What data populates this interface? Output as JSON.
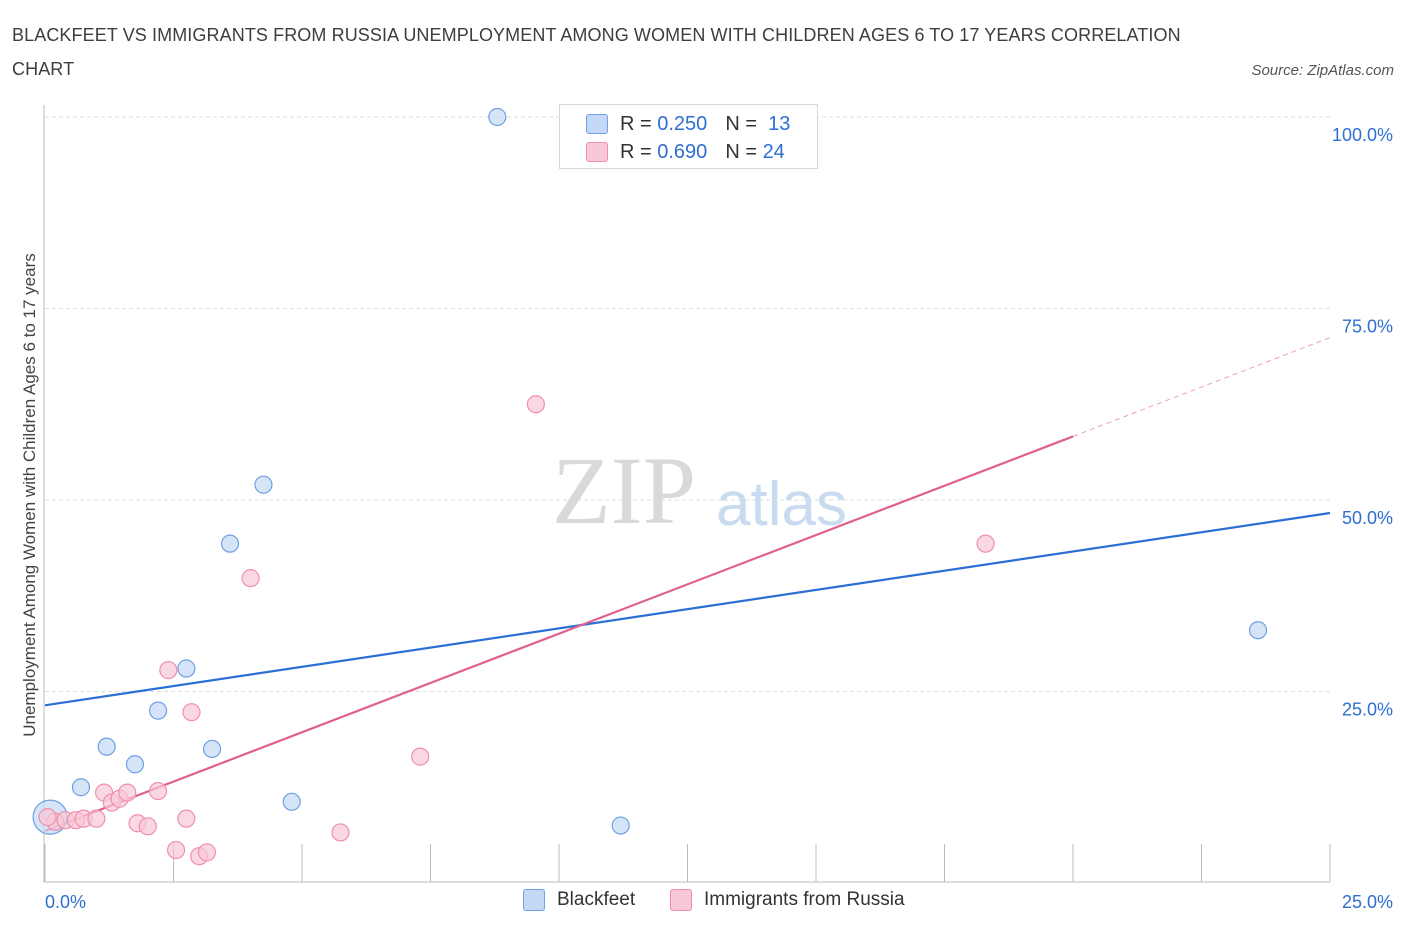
{
  "title": "BLACKFEET VS IMMIGRANTS FROM RUSSIA UNEMPLOYMENT AMONG WOMEN WITH CHILDREN AGES 6 TO 17 YEARS CORRELATION CHART",
  "source": "Source: ZipAtlas.com",
  "watermark": {
    "zip": "ZIP",
    "atlas": "atlas"
  },
  "legend": {
    "r_label": "R =",
    "n_label": "N =",
    "rows": [
      {
        "r": "0.250",
        "n": "13"
      },
      {
        "r": "0.690",
        "n": "24"
      }
    ]
  },
  "bottom_legend": [
    "Blackfeet",
    "Immigrants from Russia"
  ],
  "chart_data": {
    "type": "scatter",
    "title": "BLACKFEET VS IMMIGRANTS FROM RUSSIA UNEMPLOYMENT AMONG WOMEN WITH CHILDREN AGES 6 TO 17 YEARS CORRELATION CHART",
    "xlabel": "",
    "ylabel": "Unemployment Among Women with Children Ages 6 to 17 years",
    "xlim": [
      0,
      25
    ],
    "ylim": [
      0,
      100
    ],
    "x_tick_labels": [
      "0.0%",
      "25.0%"
    ],
    "y_tick_labels": [
      "25.0%",
      "50.0%",
      "75.0%",
      "100.0%"
    ],
    "y_ticks": [
      25,
      50,
      75,
      100
    ],
    "grid": true,
    "legend_position": "top-center",
    "series": [
      {
        "name": "Blackfeet",
        "color": "#6fa0e6",
        "fill": "#c4d9f5",
        "line_color": "#2a6fd6",
        "R": 0.25,
        "N": 13,
        "trend": {
          "x0": 0,
          "y0": 23.2,
          "x1": 25,
          "y1": 48.3
        },
        "points": [
          [
            0.1,
            8.6,
            "big"
          ],
          [
            0.7,
            12.5
          ],
          [
            1.2,
            17.8
          ],
          [
            1.75,
            15.5
          ],
          [
            2.2,
            22.5
          ],
          [
            2.75,
            28.0
          ],
          [
            3.25,
            17.5
          ],
          [
            3.6,
            44.3
          ],
          [
            4.25,
            52.0
          ],
          [
            4.8,
            10.6
          ],
          [
            8.8,
            100.0
          ],
          [
            11.2,
            7.5
          ],
          [
            23.6,
            33.0
          ]
        ]
      },
      {
        "name": "Immigrants from Russia",
        "color": "#f08fab",
        "fill": "#f8c8d7",
        "line_color": "#e0608c",
        "R": 0.69,
        "N": 24,
        "trend": {
          "x0": 0,
          "y0": 6.8,
          "x1": 20,
          "y1": 58.3
        },
        "trend_dashed": {
          "x0": 20,
          "y0": 58.3,
          "x1": 25,
          "y1": 71.2
        },
        "points": [
          [
            0.2,
            8.0
          ],
          [
            0.4,
            8.2
          ],
          [
            0.6,
            8.2
          ],
          [
            0.75,
            8.4
          ],
          [
            1.0,
            8.4
          ],
          [
            1.15,
            11.8
          ],
          [
            1.3,
            10.5
          ],
          [
            1.45,
            11.0
          ],
          [
            1.6,
            11.8
          ],
          [
            1.8,
            7.8
          ],
          [
            2.0,
            7.4
          ],
          [
            2.2,
            12.0
          ],
          [
            2.4,
            27.8
          ],
          [
            2.55,
            4.3
          ],
          [
            2.75,
            8.4
          ],
          [
            2.85,
            22.3
          ],
          [
            3.0,
            3.5
          ],
          [
            3.15,
            4.0
          ],
          [
            4.0,
            39.8
          ],
          [
            5.75,
            6.6
          ],
          [
            7.3,
            16.5
          ],
          [
            9.55,
            62.5
          ],
          [
            18.3,
            44.3
          ],
          [
            0.05,
            8.6
          ]
        ]
      }
    ]
  }
}
